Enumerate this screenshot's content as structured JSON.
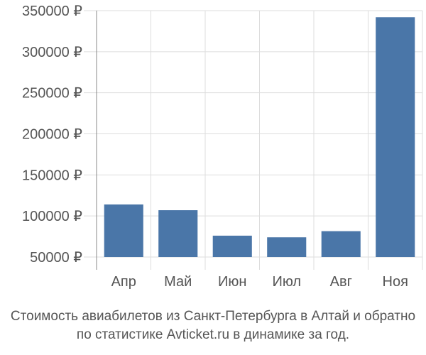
{
  "chart_data": {
    "type": "bar",
    "categories": [
      "Апр",
      "Май",
      "Июн",
      "Июл",
      "Авг",
      "Ноя"
    ],
    "values": [
      114000,
      107000,
      76000,
      74000,
      81500,
      342000
    ],
    "ylim": [
      50000,
      350000
    ],
    "yticks": [
      50000,
      100000,
      150000,
      200000,
      250000,
      300000,
      350000
    ],
    "ytick_labels": [
      "50000 ₽",
      "100000 ₽",
      "150000 ₽",
      "200000 ₽",
      "250000 ₽",
      "300000 ₽",
      "350000 ₽"
    ],
    "grid": true,
    "bar_color": "#4a76a8",
    "grid_color": "#dddddd",
    "text_color": "#555555"
  },
  "caption": {
    "line1": "Стоимость авиабилетов из Санкт-Петербурга в Алтай и обратно",
    "line2": "по статистике Avticket.ru в динамике за год."
  }
}
